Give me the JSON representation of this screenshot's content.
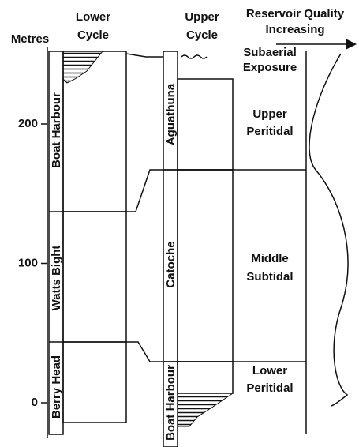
{
  "header": {
    "metres": "Metres",
    "lower_cycle": [
      "Lower",
      "Cycle"
    ],
    "upper_cycle": [
      "Upper",
      "Cycle"
    ],
    "reservoir": [
      "Reservoir Quality",
      "Increasing"
    ]
  },
  "axis": {
    "ticks": [
      0,
      100,
      200
    ]
  },
  "lower_formations": [
    "Boat Harbour",
    "Watts Bight",
    "Berry Head"
  ],
  "upper_formations": [
    "Aguathuna",
    "Catoche",
    "Boat Harbour"
  ],
  "zones": [
    [
      "Subaerial",
      "Exposure"
    ],
    [
      "Upper",
      "Peritidal"
    ],
    [
      "Middle",
      "Subtidal"
    ],
    [
      "Lower",
      "Peritidal"
    ]
  ]
}
